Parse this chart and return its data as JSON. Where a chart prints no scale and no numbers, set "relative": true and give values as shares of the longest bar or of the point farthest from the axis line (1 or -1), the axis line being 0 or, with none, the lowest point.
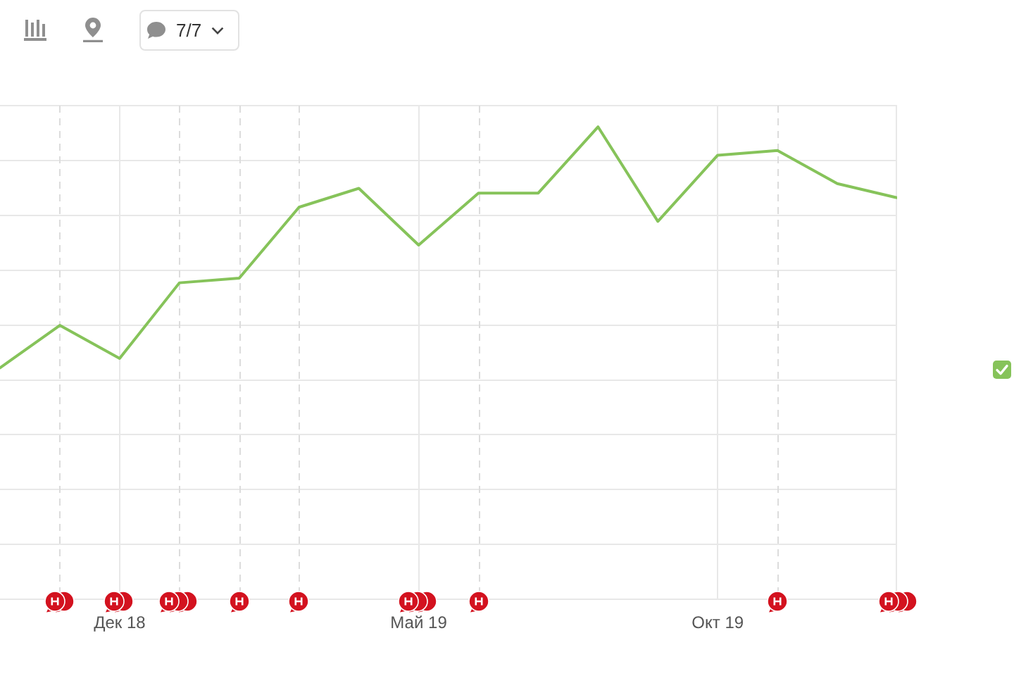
{
  "chart_data": {
    "type": "line",
    "x": [
      "2018-10",
      "2018-11",
      "2018-12",
      "2019-01",
      "2019-02",
      "2019-03",
      "2019-04",
      "2019-05",
      "2019-06",
      "2019-07",
      "2019-08",
      "2019-09",
      "2019-10",
      "2019-11",
      "2019-12",
      "2020-01"
    ],
    "series": [
      {
        "color": "#86c35a",
        "values": [
          0.49,
          0.58,
          0.51,
          0.67,
          0.68,
          0.83,
          0.87,
          0.75,
          0.86,
          0.86,
          1,
          0.8,
          0.94,
          0.95,
          0.88,
          0.85
        ]
      }
    ],
    "relative": true,
    "xlim": [
      "2018-10",
      "2020-01"
    ],
    "xticks": [
      {
        "value": "2018-12",
        "label": "Дек 18"
      },
      {
        "value": "2019-05",
        "label": "Май 19"
      },
      {
        "value": "2019-10",
        "label": "Окт 19"
      }
    ],
    "grid": true,
    "marker": "none",
    "line_style": "solid",
    "ref_lines": [
      {
        "axis": "x",
        "value": "2018-11",
        "line_style": "dashed"
      },
      {
        "axis": "x",
        "value": "2019-01",
        "line_style": "dashed"
      },
      {
        "axis": "x",
        "value": "2019-02",
        "line_style": "dashed"
      },
      {
        "axis": "x",
        "value": "2019-03",
        "line_style": "dashed"
      },
      {
        "axis": "x",
        "value": "2019-06",
        "line_style": "dashed"
      },
      {
        "axis": "x",
        "value": "2019-11",
        "line_style": "dashed"
      }
    ],
    "annotations": [
      "7/7"
    ]
  }
}
